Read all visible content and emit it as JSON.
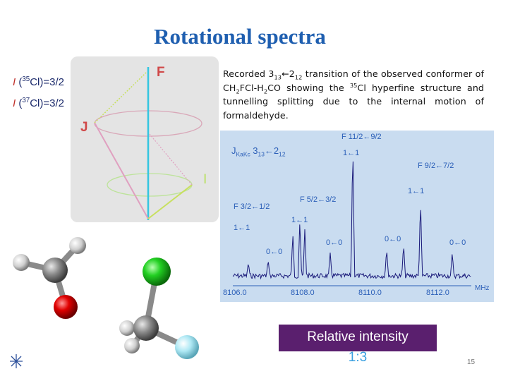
{
  "header": {
    "title": "Rotational spectra"
  },
  "spin_labels": [
    {
      "symbol": "I",
      "open": " (",
      "isotope": "35",
      "rest": "Cl)=3/2"
    },
    {
      "symbol": "I",
      "open": " (",
      "isotope": "37",
      "rest": "Cl)=3/2"
    }
  ],
  "vector_diagram": {
    "labels": [
      "F",
      "J",
      "I"
    ]
  },
  "caption": {
    "segments": [
      "Recorded 3",
      "13",
      "←2",
      "12",
      " transition of the observed conformer of CH",
      "2",
      "FCl-H",
      "2",
      "CO showing the ",
      "35",
      "Cl hyperfine structure and tunnelling splitting due to the internal motion of formaldehyde."
    ]
  },
  "spectrum": {
    "transition": [
      "J",
      "KaKc",
      " 3",
      "13",
      "←2",
      "12"
    ],
    "labels": [
      "F 11/2←9/2",
      "1←1",
      "F 9/2←7/2",
      "1←1",
      "F 3/2←1/2",
      "F 5/2←3/2",
      "1←1",
      "1←1",
      "0←0",
      "0←0",
      "0←0",
      "0←0"
    ],
    "axis_labels": [
      "8106.0",
      "8108.0",
      "8110.0",
      "8112.0"
    ],
    "unit": "MHz"
  },
  "intensity_box": {
    "lines": [
      "Relative intensity",
      "1:3"
    ]
  },
  "footer": {
    "page_number": "15"
  }
}
